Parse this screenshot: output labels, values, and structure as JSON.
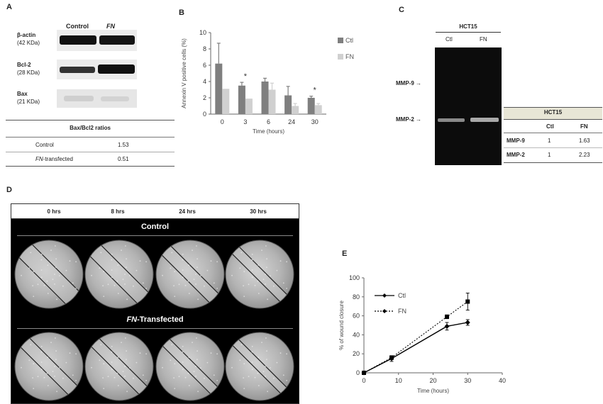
{
  "panels": {
    "a": "A",
    "b": "B",
    "c": "C",
    "d": "D",
    "e": "E"
  },
  "panel_a": {
    "col_control": "Control",
    "col_fn": "FN",
    "blots": [
      {
        "name": "β-actin",
        "kda": "(42 KDa)"
      },
      {
        "name": "Bcl-2",
        "kda": "(28 KDa)"
      },
      {
        "name": "Bax",
        "kda": "(21 KDa)"
      }
    ],
    "table_title": "Bax/Bcl2 ratios",
    "rows": [
      {
        "label": "Control",
        "label_italic": "",
        "label_rest": "",
        "value": "1.53"
      },
      {
        "label": "",
        "label_italic": "FN",
        "label_rest": "-transfected",
        "value": "0.51"
      }
    ]
  },
  "panel_c": {
    "cell_line": "HCT15",
    "lane_ctl": "Ctl",
    "lane_fn": "FN",
    "mmp9_label": "MMP-9",
    "mmp2_label": "MMP-2",
    "arrow": "→",
    "table_title": "HCT15",
    "table_head": [
      "",
      "Ctl",
      "FN"
    ],
    "table_rows": [
      [
        "MMP-9",
        "1",
        "1.63"
      ],
      [
        "MMP-2",
        "1",
        "2.23"
      ]
    ]
  },
  "panel_d": {
    "times": [
      "0 hrs",
      "8 hrs",
      "24 hrs",
      "30 hrs"
    ],
    "row1_label": "Control",
    "row2_italic": "FN",
    "row2_rest": "-Transfected"
  },
  "chart_data": [
    {
      "type": "bar",
      "panel": "B",
      "ylabel": "Annexin V positive cells (%)",
      "xlabel": "Time (hours)",
      "ylim": [
        0,
        10
      ],
      "yticks": [
        0,
        2,
        4,
        6,
        8,
        10
      ],
      "categories": [
        "0",
        "3",
        "6",
        "24",
        "30"
      ],
      "series": [
        {
          "name": "Ctl",
          "color": "#7f7f7f",
          "values": [
            6.2,
            3.5,
            4.0,
            2.3,
            2.0
          ],
          "errors": [
            2.5,
            0.4,
            0.4,
            1.1,
            0.2
          ]
        },
        {
          "name": "FN",
          "color": "#d0d0d0",
          "values": [
            3.1,
            1.9,
            3.0,
            1.0,
            1.1
          ],
          "errors": [
            0.0,
            0.0,
            0.8,
            0.3,
            0.2
          ]
        }
      ],
      "annotations": [
        {
          "category": "3",
          "text": "*"
        },
        {
          "category": "30",
          "text": "*"
        }
      ],
      "legend": "right"
    },
    {
      "type": "line",
      "panel": "E",
      "ylabel": "% of wound closure",
      "xlabel": "Time (hours)",
      "xlim": [
        0,
        40
      ],
      "ylim": [
        0,
        100
      ],
      "xticks": [
        0,
        10,
        20,
        30,
        40
      ],
      "yticks": [
        0,
        20,
        40,
        60,
        80,
        100
      ],
      "series": [
        {
          "name": "Ctl",
          "style": "solid",
          "x": [
            0,
            8,
            24,
            30
          ],
          "y": [
            0,
            15,
            49,
            53
          ],
          "errors": [
            0,
            3,
            4,
            3
          ]
        },
        {
          "name": "FN",
          "style": "dotted",
          "x": [
            0,
            8,
            24,
            30
          ],
          "y": [
            0,
            16,
            59,
            75
          ],
          "errors": [
            0,
            2,
            2,
            9
          ]
        }
      ],
      "legend": "top-left"
    }
  ]
}
